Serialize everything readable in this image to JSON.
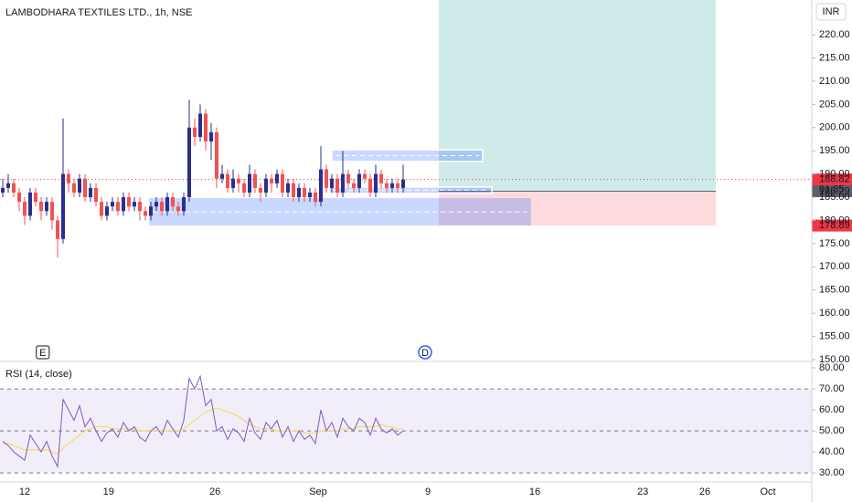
{
  "chart_data": {
    "type": "candlestick",
    "title": "LAMBODHARA TEXTILES LTD., 1h, NSE",
    "currency": "INR",
    "up_color": "#2a2e8c",
    "down_color": "#ef5350",
    "open": [
      186,
      187,
      188,
      186,
      184,
      181,
      186,
      184,
      182,
      184,
      180,
      176,
      190,
      188,
      186,
      189,
      185,
      187,
      184,
      181,
      183,
      184,
      182,
      185,
      183,
      184,
      182,
      181,
      183,
      184,
      182,
      185,
      183,
      182,
      185,
      200,
      198,
      203,
      197,
      199,
      189,
      190,
      187,
      189,
      188,
      186,
      190,
      187,
      186,
      189,
      188,
      190,
      186,
      188,
      185,
      187,
      185,
      186,
      184,
      191,
      187,
      189,
      186,
      190,
      188,
      187,
      190,
      189,
      186,
      190,
      188,
      187,
      188,
      187
    ],
    "high": [
      189,
      190,
      189,
      187,
      185,
      187,
      187,
      185,
      185,
      185,
      181,
      202,
      191,
      189,
      190,
      190,
      188,
      188,
      185,
      184,
      185,
      185,
      186,
      186,
      185,
      185,
      183,
      184,
      185,
      185,
      186,
      186,
      184,
      186,
      206,
      202,
      205,
      204,
      201,
      200,
      192,
      191,
      191,
      190,
      189,
      192,
      191,
      188,
      190,
      190,
      191,
      191,
      189,
      189,
      188,
      188,
      187,
      187,
      196,
      192,
      190,
      190,
      195,
      191,
      189,
      191,
      191,
      190,
      192,
      191,
      189,
      189,
      189,
      192
    ],
    "low": [
      185,
      186,
      185,
      182,
      179,
      180,
      183,
      180,
      181,
      178,
      172,
      175,
      186,
      185,
      185,
      184,
      184,
      183,
      180,
      180,
      182,
      181,
      181,
      182,
      182,
      180,
      180,
      180,
      182,
      181,
      181,
      182,
      181,
      181,
      184,
      196,
      197,
      195,
      193,
      187,
      188,
      186,
      186,
      186,
      185,
      185,
      186,
      184,
      185,
      186,
      187,
      185,
      185,
      184,
      184,
      184,
      184,
      183,
      183,
      186,
      186,
      185,
      185,
      187,
      186,
      186,
      188,
      185,
      185,
      187,
      186,
      186,
      186,
      186
    ],
    "close": [
      187,
      188,
      186,
      184,
      181,
      186,
      184,
      182,
      184,
      180,
      176,
      190,
      188,
      186,
      189,
      185,
      187,
      184,
      181,
      183,
      184,
      182,
      185,
      183,
      184,
      182,
      181,
      183,
      184,
      182,
      185,
      183,
      182,
      185,
      200,
      198,
      203,
      197,
      199,
      189,
      190,
      187,
      189,
      188,
      186,
      190,
      187,
      186,
      189,
      188,
      190,
      186,
      188,
      185,
      187,
      185,
      186,
      184,
      191,
      187,
      189,
      186,
      190,
      188,
      187,
      190,
      189,
      186,
      190,
      188,
      187,
      188,
      187,
      188.82
    ],
    "xlim": [
      0,
      148
    ],
    "xticks": [
      {
        "value": 4.5,
        "label": "12"
      },
      {
        "value": 19.8,
        "label": "19"
      },
      {
        "value": 39.2,
        "label": "26"
      },
      {
        "value": 58,
        "label": "Sep"
      },
      {
        "value": 78,
        "label": "9"
      },
      {
        "value": 97.5,
        "label": "16"
      },
      {
        "value": 117.2,
        "label": "23"
      },
      {
        "value": 128.5,
        "label": "26"
      },
      {
        "value": 140,
        "label": "Oct"
      }
    ],
    "ylim": [
      149.8,
      227.5
    ],
    "yticks": [
      {
        "value": 150,
        "label": "150.00"
      },
      {
        "value": 155,
        "label": "155.00"
      },
      {
        "value": 160,
        "label": "160.00"
      },
      {
        "value": 165,
        "label": "165.00"
      },
      {
        "value": 170,
        "label": "170.00"
      },
      {
        "value": 175,
        "label": "175.00"
      },
      {
        "value": 180,
        "label": "180.00"
      },
      {
        "value": 185,
        "label": "185.00"
      },
      {
        "value": 190,
        "label": "190.00"
      },
      {
        "value": 195,
        "label": "195.00"
      },
      {
        "value": 200,
        "label": "200.00"
      },
      {
        "value": 205,
        "label": "205.00"
      },
      {
        "value": 210,
        "label": "210.00"
      },
      {
        "value": 215,
        "label": "215.00"
      },
      {
        "value": 220,
        "label": "220.00"
      }
    ],
    "price_labels": [
      {
        "value": 188.82,
        "label": "188.82",
        "color": "#f23645"
      },
      {
        "value": 186.29,
        "label": "186.29",
        "color": "#5d606b"
      },
      {
        "value": 178.89,
        "label": "178.89",
        "color": "#f23645"
      }
    ],
    "countdown": "01:35",
    "position": {
      "from": 80,
      "to": 130.5,
      "entry": 186.29,
      "stop": 178.89,
      "target": 227.5
    },
    "zones": [
      {
        "from": 60.5,
        "to": 88,
        "top": 195.2,
        "bottom": 192.7
      },
      {
        "from": 60,
        "to": 89.7,
        "top": 187.2,
        "bottom": 185.8
      },
      {
        "from": 27.2,
        "to": 96.8,
        "top": 184.8,
        "bottom": 178.9
      }
    ],
    "events": [
      {
        "x": 7.8,
        "label": "E"
      },
      {
        "x": 77.5,
        "label": "D"
      }
    ],
    "rsi": {
      "title": "RSI (14, close)",
      "color": "#7e57c2",
      "ma_color": "#f5d94a",
      "values": [
        45,
        43,
        40,
        38,
        36,
        48,
        44,
        40,
        45,
        38,
        33,
        65,
        60,
        55,
        62,
        52,
        56,
        50,
        45,
        49,
        51,
        47,
        54,
        50,
        52,
        47,
        45,
        50,
        52,
        48,
        55,
        51,
        47,
        55,
        75,
        70,
        76,
        62,
        65,
        50,
        52,
        46,
        51,
        49,
        45,
        56,
        49,
        46,
        54,
        51,
        55,
        47,
        52,
        45,
        50,
        46,
        48,
        44,
        60,
        50,
        54,
        47,
        56,
        52,
        50,
        56,
        54,
        48,
        56,
        51,
        49,
        51,
        48,
        50
      ],
      "ma": [
        44,
        44,
        43,
        42,
        41,
        41,
        41,
        41,
        41,
        40,
        39,
        42,
        44,
        46,
        48,
        50,
        51,
        52,
        52,
        52,
        51,
        51,
        51,
        51,
        51,
        50,
        50,
        50,
        50,
        50,
        50,
        50,
        50,
        51,
        53,
        55,
        57,
        59,
        60,
        61,
        60,
        59,
        58,
        57,
        55,
        53,
        52,
        51,
        51,
        51,
        50,
        50,
        50,
        50,
        50,
        49,
        49,
        49,
        50,
        50,
        50,
        50,
        51,
        51,
        51,
        52,
        52,
        52,
        52,
        53,
        52,
        52,
        51,
        51
      ],
      "ylim": [
        25.7,
        82.2
      ],
      "yticks": [
        {
          "value": 30,
          "label": "30.00"
        },
        {
          "value": 40,
          "label": "40.00"
        },
        {
          "value": 50,
          "label": "50.00"
        },
        {
          "value": 60,
          "label": "60.00"
        },
        {
          "value": 70,
          "label": "70.00"
        },
        {
          "value": 80,
          "label": "80.00"
        }
      ],
      "bands": [
        70,
        50,
        30
      ]
    }
  }
}
